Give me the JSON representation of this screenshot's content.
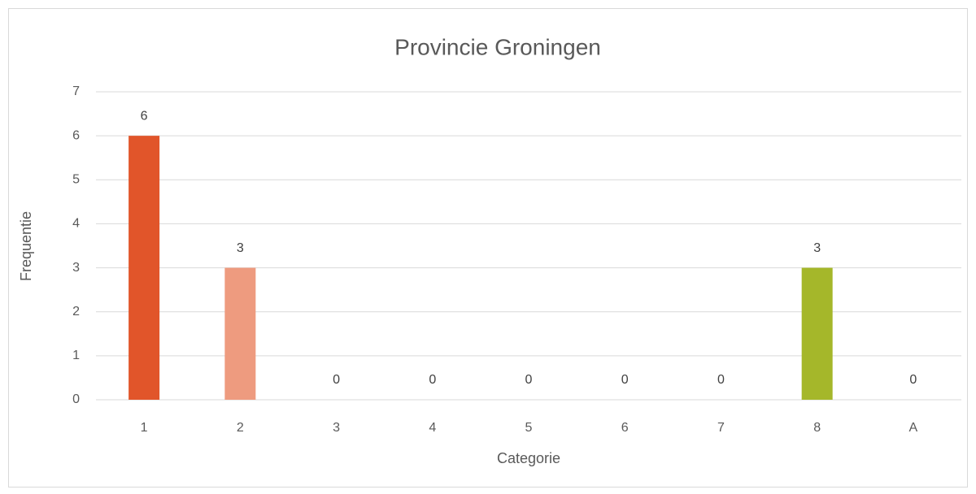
{
  "chart_data": {
    "type": "bar",
    "title": "Provincie Groningen",
    "x_label": "Categorie",
    "y_label": "Frequentie",
    "categories": [
      "1",
      "2",
      "3",
      "4",
      "5",
      "6",
      "7",
      "8",
      "A"
    ],
    "values": [
      6,
      3,
      0,
      0,
      0,
      0,
      0,
      3,
      0
    ],
    "colors": [
      "#e1552a",
      "#ee9b7f",
      null,
      null,
      null,
      null,
      null,
      "#a5b72a",
      null
    ],
    "ylim": [
      0,
      7
    ],
    "yticks": [
      0,
      1,
      2,
      3,
      4,
      5,
      6,
      7
    ],
    "grid": true
  }
}
